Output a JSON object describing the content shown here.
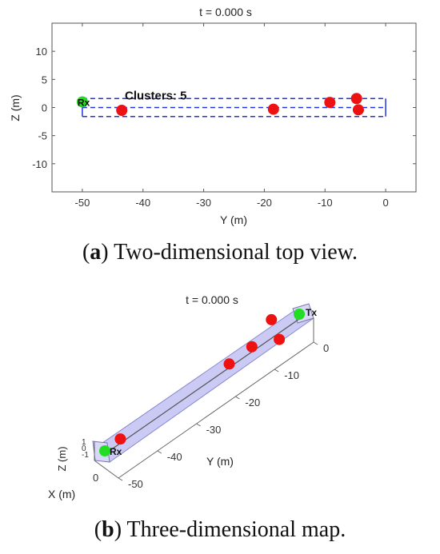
{
  "chart_data": [
    {
      "type": "scatter",
      "title": "t = 0.000 s",
      "xlabel": "Y (m)",
      "ylabel": "Z (m)",
      "xlim": [
        -55,
        5
      ],
      "ylim": [
        -15,
        15
      ],
      "xticks": [
        -50,
        -40,
        -30,
        -20,
        -10,
        0
      ],
      "yticks": [
        10,
        5,
        0,
        -5,
        -10
      ],
      "grid": false,
      "annotation": "Clusters: 5",
      "receiver": {
        "label": "Rx",
        "y": -50,
        "z": 1,
        "color": "#22dd22"
      },
      "clusters": [
        {
          "y": -43.5,
          "z": -0.5
        },
        {
          "y": -18.5,
          "z": -0.3
        },
        {
          "y": -9.2,
          "z": 0.9
        },
        {
          "y": -4.8,
          "z": 1.6
        },
        {
          "y": -4.5,
          "z": -0.4
        }
      ],
      "cluster_color": "#ee1111",
      "box": {
        "y_range": [
          -50,
          0
        ],
        "z_range": [
          -1.6,
          1.6
        ],
        "color": "#2233dd"
      }
    },
    {
      "type": "scatter",
      "title": "t = 0.000 s",
      "xlabel": "X (m)",
      "ylabel": "Y (m)",
      "zlabel": "Z (m)",
      "y_ticks": [
        0,
        -10,
        -20,
        -30,
        -40,
        -50
      ],
      "x_ticks": [
        0
      ],
      "z_ticks": [
        1,
        0,
        -1
      ],
      "transmitter": {
        "label": "Tx",
        "y": 0,
        "color": "#22dd22"
      },
      "receiver": {
        "label": "Rx",
        "y": -50,
        "color": "#22dd22"
      },
      "clusters_y": [
        -2,
        -4.5,
        -6,
        -18,
        -46
      ],
      "cluster_color": "#ee1111",
      "tube_color": "#b8b8f0"
    }
  ],
  "captions": {
    "a_letter": "a",
    "a_text": " Two-dimensional top view.",
    "b_letter": "b",
    "b_text": " Three-dimensional map."
  }
}
